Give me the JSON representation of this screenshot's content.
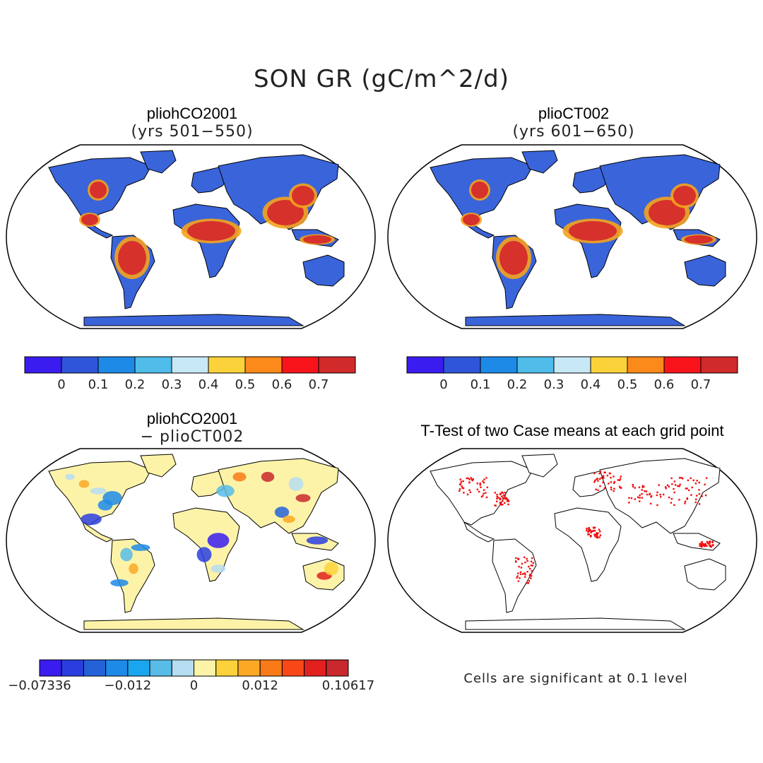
{
  "title": "SON GR (gC/m^2/d)",
  "panels": [
    {
      "title": "pliohCO2001",
      "subtitle": "(yrs 501−550)"
    },
    {
      "title": "plioCT002",
      "subtitle": "(yrs 601−650)"
    },
    {
      "title": "pliohCO2001",
      "subtitle": "− plioCT002"
    },
    {
      "title": "T-Test of two Case means at each grid point",
      "subtitle": ""
    }
  ],
  "colorbar_abs": {
    "colors": [
      "#3a1cf0",
      "#2f56d8",
      "#1e8ae8",
      "#4fbcea",
      "#c8e8f6",
      "#fcd23a",
      "#fb8a1a",
      "#f8141a",
      "#d02a2a"
    ],
    "labels": [
      "0",
      "0.1",
      "0.2",
      "0.3",
      "0.4",
      "0.5",
      "0.6",
      "0.7"
    ]
  },
  "colorbar_diff": {
    "colors": [
      "#3a1cf0",
      "#2a3ee0",
      "#2562d8",
      "#1e8ae8",
      "#1aa6ee",
      "#58bce8",
      "#b6ddf2",
      "#fdf3a8",
      "#fcd23a",
      "#fba825",
      "#f97a18",
      "#f84818",
      "#e2201e",
      "#c8282e"
    ],
    "labels": [
      "−0.07336",
      "−0.012",
      "0",
      "0.012",
      "0.10617"
    ]
  },
  "note": "Cells are significant at 0.1 level",
  "colors": {
    "land_low": "#3a64da",
    "land_high": "#d52b2b",
    "land_mid": "#f6a21c",
    "diff_neutral": "#fdf3a8",
    "signif": "#f20d0d"
  }
}
